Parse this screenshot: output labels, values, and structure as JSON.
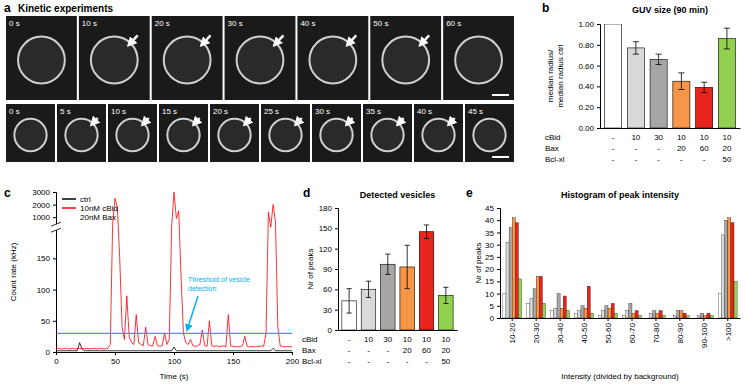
{
  "image_panel": {
    "panel": "a",
    "title": "Kinetic experiments",
    "rows": [
      [
        "0 s",
        "10 s",
        "20 s",
        "30 s",
        "40 s",
        "50 s",
        "60 s"
      ],
      [
        "0 s",
        "5 s",
        "10 s",
        "15 s",
        "20 s",
        "25 s",
        "30 s",
        "35 s",
        "40 s",
        "45 s"
      ]
    ]
  },
  "chart_data": [
    {
      "type": "bar",
      "panel": "b",
      "title": "GUV size (90 min)",
      "ylabel": [
        "median radius/",
        "median radius ctrl"
      ],
      "categories": [
        null,
        null,
        null,
        null,
        null,
        null
      ],
      "values": [
        1.0,
        0.77,
        0.66,
        0.45,
        0.39,
        0.86
      ],
      "error": [
        null,
        0.06,
        0.05,
        0.08,
        0.05,
        0.1
      ],
      "colors": [
        "#ffffff",
        "#d9d9d9",
        "#a6a6a6",
        "#f79646",
        "#e8241c",
        "#92d050"
      ],
      "ylim": [
        0,
        1
      ],
      "yticks": [
        {
          "value": 0,
          "label": "0.00"
        },
        {
          "value": 0.2,
          "label": "0.20"
        },
        {
          "value": 0.4,
          "label": "0.40"
        },
        {
          "value": 0.6,
          "label": "0.60"
        },
        {
          "value": 0.8,
          "label": "0.80"
        },
        {
          "value": 1,
          "label": "1.00"
        }
      ],
      "conditions": [
        {
          "name": "cBid",
          "values": [
            "-",
            "10",
            "30",
            "10",
            "10",
            "10"
          ]
        },
        {
          "name": "Bax",
          "values": [
            "-",
            "-",
            "-",
            "20",
            "60",
            "20"
          ]
        },
        {
          "name": "Bcl-xl",
          "values": [
            "-",
            "-",
            "-",
            "-",
            "-",
            "50"
          ]
        }
      ]
    },
    {
      "type": "line",
      "panel": "c",
      "xlabel": "Time (s)",
      "ylabel": "Count rate (kHz)",
      "x": [
        0,
        2,
        4,
        6,
        8,
        10,
        12,
        14,
        16,
        18,
        20,
        22,
        24,
        26,
        28,
        30,
        32,
        34,
        36,
        38,
        40,
        42,
        44,
        46,
        48,
        50,
        52,
        54,
        56,
        58,
        60,
        62,
        64,
        66,
        68,
        70,
        72,
        74,
        76,
        78,
        80,
        82,
        84,
        86,
        88,
        90,
        92,
        94,
        96,
        98,
        100,
        102,
        104,
        106,
        108,
        110,
        112,
        114,
        116,
        118,
        120,
        122,
        124,
        126,
        128,
        130,
        132,
        134,
        136,
        138,
        140,
        142,
        144,
        146,
        148,
        150,
        152,
        154,
        156,
        158,
        160,
        162,
        164,
        166,
        168,
        170,
        172,
        174,
        176,
        178,
        180,
        182,
        184,
        186,
        188,
        190,
        192,
        194,
        196,
        198,
        200
      ],
      "series": [
        {
          "name": "ctrl",
          "color": "#000000",
          "values": [
            2,
            2,
            2,
            2,
            2,
            2,
            2,
            2,
            2,
            2,
            15,
            5,
            2,
            2,
            2,
            2,
            2,
            2,
            2,
            2,
            2,
            2,
            2,
            2,
            2,
            2,
            2,
            2,
            2,
            2,
            2,
            2,
            2,
            2,
            2,
            2,
            2,
            2,
            2,
            2,
            2,
            2,
            2,
            2,
            2,
            2,
            2,
            2,
            2,
            2,
            8,
            2,
            2,
            2,
            2,
            2,
            2,
            2,
            2,
            2,
            2,
            2,
            2,
            2,
            2,
            2,
            2,
            2,
            2,
            2,
            2,
            2,
            2,
            2,
            2,
            2,
            2,
            2,
            2,
            2,
            2,
            2,
            2,
            2,
            2,
            2,
            2,
            2,
            2,
            2,
            2,
            2,
            6,
            2,
            2,
            2,
            2,
            2,
            2,
            2,
            2
          ]
        },
        {
          "name": [
            "10nM cBid",
            "20nM Bax"
          ],
          "color": "#ff0000",
          "values": [
            5,
            6,
            5,
            5,
            6,
            5,
            5,
            6,
            5,
            5,
            6,
            5,
            5,
            6,
            5,
            5,
            6,
            5,
            5,
            6,
            5,
            5,
            6,
            12,
            400,
            2500,
            1800,
            150,
            40,
            20,
            90,
            25,
            15,
            12,
            60,
            15,
            12,
            10,
            40,
            12,
            10,
            10,
            25,
            10,
            9,
            10,
            30,
            12,
            20,
            200,
            3000,
            900,
            1500,
            120,
            30,
            15,
            12,
            20,
            10,
            9,
            10,
            12,
            35,
            10,
            9,
            50,
            10,
            9,
            10,
            8,
            9,
            10,
            8,
            60,
            10,
            9,
            8,
            9,
            8,
            10,
            25,
            9,
            8,
            9,
            8,
            9,
            8,
            10,
            9,
            30,
            1400,
            200,
            2000,
            600,
            40,
            10,
            9,
            8,
            9,
            8,
            9
          ]
        }
      ],
      "threshold": {
        "value": 30,
        "label": [
          "Threshold of vesicle",
          "detection"
        ],
        "color": "#00b0f0"
      },
      "xlim": [
        0,
        200
      ],
      "xticks": [
        0,
        50,
        100,
        150,
        200
      ],
      "ylim": [
        0,
        3000
      ],
      "ybreak": 200,
      "yticks": [
        0,
        50,
        100,
        150,
        1000,
        2000,
        3000
      ],
      "legend": "upper-left"
    },
    {
      "type": "bar",
      "panel": "d",
      "title": "Detected vesicles",
      "ylabel": "Nr of peaks",
      "categories": [
        null,
        null,
        null,
        null,
        null,
        null
      ],
      "values": [
        43,
        60,
        97,
        93,
        145,
        51
      ],
      "error": [
        18,
        12,
        15,
        32,
        10,
        12
      ],
      "colors": [
        "#ffffff",
        "#d9d9d9",
        "#a6a6a6",
        "#f79646",
        "#e8241c",
        "#92d050"
      ],
      "ylim": [
        0,
        180
      ],
      "yticks": [
        0,
        30,
        60,
        90,
        120,
        150,
        180
      ],
      "conditions": [
        {
          "name": "cBid",
          "values": [
            "-",
            "10",
            "30",
            "10",
            "10",
            "10"
          ]
        },
        {
          "name": "Bax",
          "values": [
            "-",
            "-",
            "-",
            "20",
            "60",
            "20"
          ]
        },
        {
          "name": "Bcl-xl",
          "values": [
            "-",
            "-",
            "-",
            "-",
            "-",
            "50"
          ]
        }
      ]
    },
    {
      "type": "bar",
      "panel": "e",
      "title": "Histogram of peak intensity",
      "ylabel": "Nr of peaks",
      "xlabel": "Intensity (divided by background)",
      "categories": [
        "10-20",
        "20-30",
        "30-40",
        "40-50",
        "50-60",
        "60-70",
        "70-80",
        "80-90",
        "90-100",
        ">100"
      ],
      "series": [
        {
          "color": "#ffffff",
          "values": [
            10,
            6,
            3,
            2,
            1,
            1,
            0,
            0,
            0,
            10
          ]
        },
        {
          "color": "#d9d9d9",
          "values": [
            31,
            8,
            4,
            3,
            3,
            3,
            2,
            1,
            1,
            34
          ]
        },
        {
          "color": "#a6a6a6",
          "values": [
            37,
            12,
            10,
            5,
            5,
            6,
            3,
            3,
            2,
            40
          ]
        },
        {
          "color": "#f79646",
          "values": [
            41,
            17,
            4,
            4,
            4,
            2,
            2,
            3,
            1,
            41
          ]
        },
        {
          "color": "#e8241c",
          "values": [
            39,
            17,
            9,
            13,
            6,
            3,
            3,
            2,
            2,
            39
          ]
        },
        {
          "color": "#92d050",
          "values": [
            16,
            6,
            3,
            2,
            2,
            1,
            1,
            1,
            1,
            15
          ]
        }
      ],
      "ylim": [
        0,
        45
      ],
      "yticks": [
        0,
        5,
        10,
        15,
        20,
        25,
        30,
        35,
        40,
        45
      ]
    }
  ]
}
